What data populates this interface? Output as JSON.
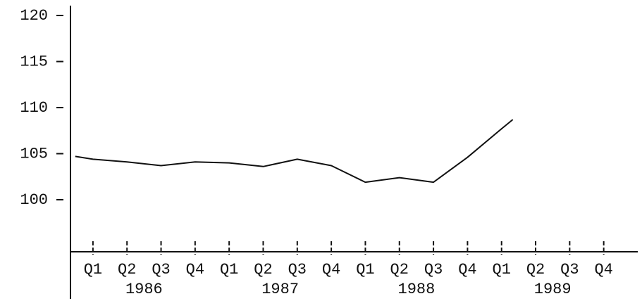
{
  "chart_data": {
    "type": "line",
    "x": [
      -0.52,
      0,
      1,
      2,
      3,
      4,
      5,
      6,
      7,
      8,
      9,
      10,
      11,
      12,
      12.33
    ],
    "values": [
      104.7,
      104.4,
      104.1,
      103.7,
      104.1,
      104.0,
      103.6,
      104.4,
      103.7,
      101.9,
      102.4,
      101.9,
      104.6,
      107.7,
      108.7
    ],
    "color": "#111111",
    "xlim": [
      -0.66,
      16.0
    ],
    "xticks": [
      {
        "value": 0,
        "label": "Q1"
      },
      {
        "value": 1,
        "label": "Q2"
      },
      {
        "value": 2,
        "label": "Q3"
      },
      {
        "value": 3,
        "label": "Q4"
      },
      {
        "value": 4,
        "label": "Q1"
      },
      {
        "value": 5,
        "label": "Q2"
      },
      {
        "value": 6,
        "label": "Q3"
      },
      {
        "value": 7,
        "label": "Q4"
      },
      {
        "value": 8,
        "label": "Q1"
      },
      {
        "value": 9,
        "label": "Q2"
      },
      {
        "value": 10,
        "label": "Q3"
      },
      {
        "value": 11,
        "label": "Q4"
      },
      {
        "value": 12,
        "label": "Q1"
      },
      {
        "value": 13,
        "label": "Q2"
      },
      {
        "value": 14,
        "label": "Q3"
      },
      {
        "value": 15,
        "label": "Q4"
      }
    ],
    "x_groups": [
      "1986",
      "1987",
      "1988",
      "1989"
    ],
    "ylim": [
      94.35,
      121.07
    ],
    "yticks": [
      100,
      105,
      110,
      115,
      120
    ]
  }
}
